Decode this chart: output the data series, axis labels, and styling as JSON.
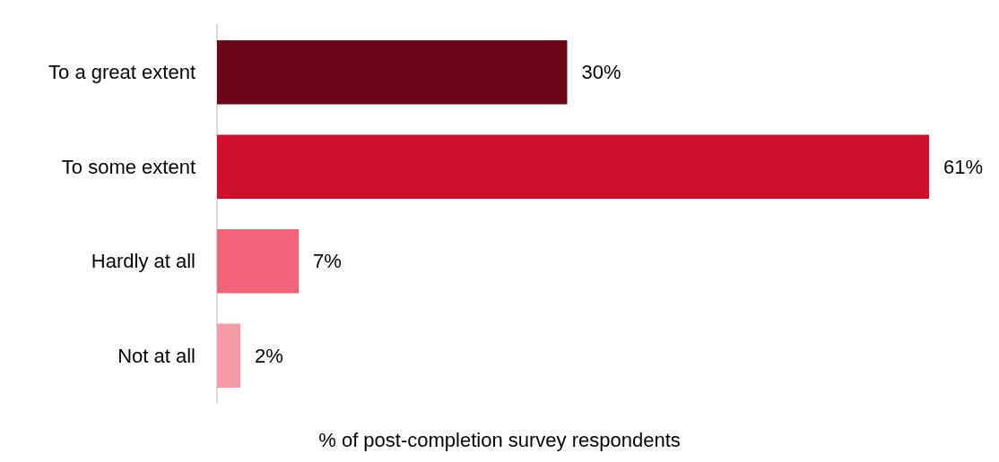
{
  "chart_data": {
    "type": "bar",
    "orientation": "horizontal",
    "categories": [
      "To a great extent",
      "To some extent",
      "Hardly at all",
      "Not at all"
    ],
    "values": [
      30,
      61,
      7,
      2
    ],
    "colors": [
      "#6b0716",
      "#d0112b",
      "#f26378",
      "#f799a6"
    ],
    "value_labels": [
      "30%",
      "61%",
      "7%",
      "2%"
    ],
    "xlabel": "% of post-completion survey respondents"
  }
}
